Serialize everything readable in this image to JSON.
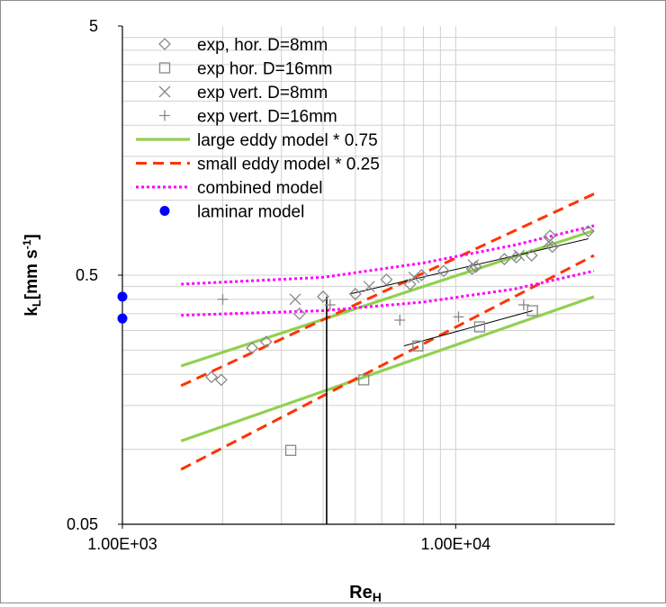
{
  "chart_data": {
    "type": "scatter",
    "xscale": "log",
    "yscale": "log",
    "xlim": [
      1000,
      30000
    ],
    "ylim": [
      0.05,
      5
    ],
    "grid": true,
    "legend_position": "top-left",
    "xlabel": "Re",
    "xlabel_sub": "H",
    "ylabel_main": "k",
    "ylabel_sub": "L",
    "ylabel_unit": "[mm s",
    "ylabel_sup": "-1",
    "ylabel_close": "]",
    "x_ticks": [
      {
        "value": 1000,
        "label": "1.00E+03"
      },
      {
        "value": 10000,
        "label": "1.00E+04"
      }
    ],
    "y_ticks": [
      {
        "value": 0.05,
        "label": "0.05"
      },
      {
        "value": 0.5,
        "label": "0.5"
      },
      {
        "value": 5,
        "label": "5"
      }
    ],
    "colors": {
      "exp": "#888888",
      "large_eddy": "#92d050",
      "small_eddy": "#ff3300",
      "combined": "#ff00ff",
      "laminar": "#0000ff",
      "grid": "#d0d0d0"
    },
    "series": [
      {
        "name": "exp, hor. D=8mm",
        "marker": "diamond",
        "points": [
          [
            1850,
            0.195
          ],
          [
            1980,
            0.19
          ],
          [
            2450,
            0.255
          ],
          [
            2700,
            0.27
          ],
          [
            3400,
            0.35
          ],
          [
            4000,
            0.41
          ],
          [
            5000,
            0.42
          ],
          [
            6200,
            0.48
          ],
          [
            7300,
            0.46
          ],
          [
            7900,
            0.5
          ],
          [
            9200,
            0.52
          ],
          [
            11200,
            0.53
          ],
          [
            11500,
            0.54
          ],
          [
            14000,
            0.58
          ],
          [
            15200,
            0.59
          ],
          [
            16900,
            0.6
          ],
          [
            19200,
            0.72
          ],
          [
            19500,
            0.65
          ],
          [
            25000,
            0.75
          ]
        ]
      },
      {
        "name": "exp hor. D=16mm",
        "marker": "square",
        "points": [
          [
            3200,
            0.099
          ],
          [
            5300,
            0.19
          ],
          [
            7700,
            0.26
          ],
          [
            11800,
            0.31
          ],
          [
            17000,
            0.36
          ]
        ]
      },
      {
        "name": "exp vert. D=8mm",
        "marker": "x",
        "points": [
          [
            3300,
            0.4
          ],
          [
            5500,
            0.45
          ],
          [
            7500,
            0.49
          ],
          [
            11300,
            0.55
          ],
          [
            15500,
            0.6
          ],
          [
            19000,
            0.68
          ]
        ]
      },
      {
        "name": "exp vert. D=16mm",
        "marker": "plus",
        "points": [
          [
            2000,
            0.4
          ],
          [
            4200,
            0.38
          ],
          [
            6800,
            0.33
          ],
          [
            10200,
            0.34
          ],
          [
            16000,
            0.38
          ]
        ]
      },
      {
        "name": "large eddy model * 0.75",
        "line": "solid",
        "lines": [
          [
            [
              1500,
              0.216
            ],
            [
              26000,
              0.755
            ]
          ],
          [
            [
              1500,
              0.108
            ],
            [
              26000,
              0.41
            ]
          ]
        ]
      },
      {
        "name": "small eddy model * 0.25",
        "line": "dashed",
        "lines": [
          [
            [
              1500,
              0.18
            ],
            [
              26000,
              1.06
            ]
          ],
          [
            [
              1500,
              0.083
            ],
            [
              26000,
              0.6
            ]
          ]
        ]
      },
      {
        "name": "combined model",
        "line": "dotted",
        "lines": [
          [
            [
              1500,
              0.46
            ],
            [
              4000,
              0.49
            ],
            [
              8000,
              0.56
            ],
            [
              15000,
              0.66
            ],
            [
              26000,
              0.79
            ]
          ],
          [
            [
              1500,
              0.345
            ],
            [
              4000,
              0.36
            ],
            [
              8000,
              0.39
            ],
            [
              15000,
              0.44
            ],
            [
              26000,
              0.52
            ]
          ]
        ]
      },
      {
        "name": "laminar model",
        "marker": "dot",
        "points": [
          [
            1000,
            0.41
          ],
          [
            1000,
            0.335
          ]
        ]
      }
    ],
    "annotations": {
      "vertical_line_x": 4100,
      "fit_lines": [
        [
          [
            4800,
            0.42
          ],
          [
            25000,
            0.7
          ]
        ],
        [
          [
            7000,
            0.26
          ],
          [
            17000,
            0.36
          ]
        ]
      ]
    }
  }
}
